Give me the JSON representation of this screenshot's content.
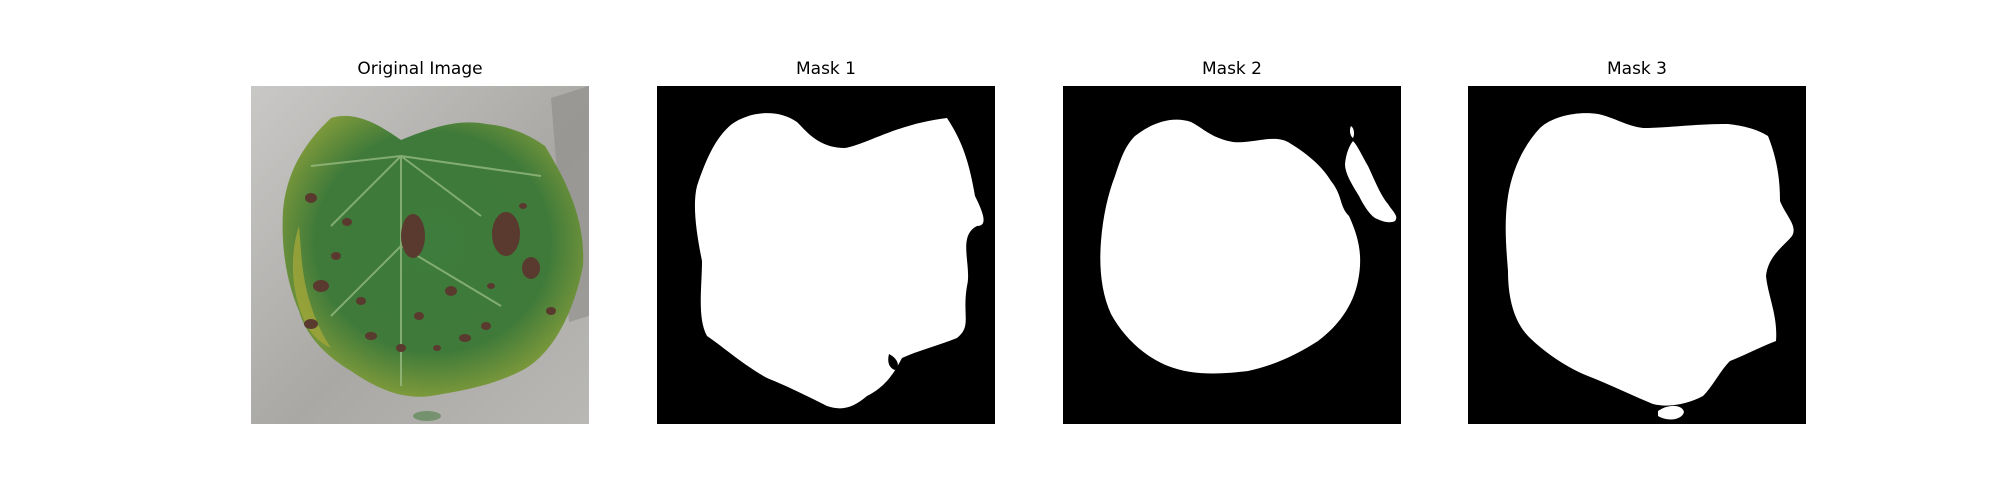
{
  "figure": {
    "panels": [
      {
        "title": "Original Image",
        "kind": "photo-leaf"
      },
      {
        "title": "Mask 1",
        "kind": "binary-mask"
      },
      {
        "title": "Mask 2",
        "kind": "binary-mask"
      },
      {
        "title": "Mask 3",
        "kind": "binary-mask"
      }
    ]
  },
  "colors": {
    "mask_background": "#000000",
    "mask_foreground": "#ffffff",
    "photo_background": "#b4b4b2",
    "leaf_green": "#3f7a3a",
    "leaf_yellow": "#9ea53a",
    "lesion_brown": "#5a3a2e"
  }
}
